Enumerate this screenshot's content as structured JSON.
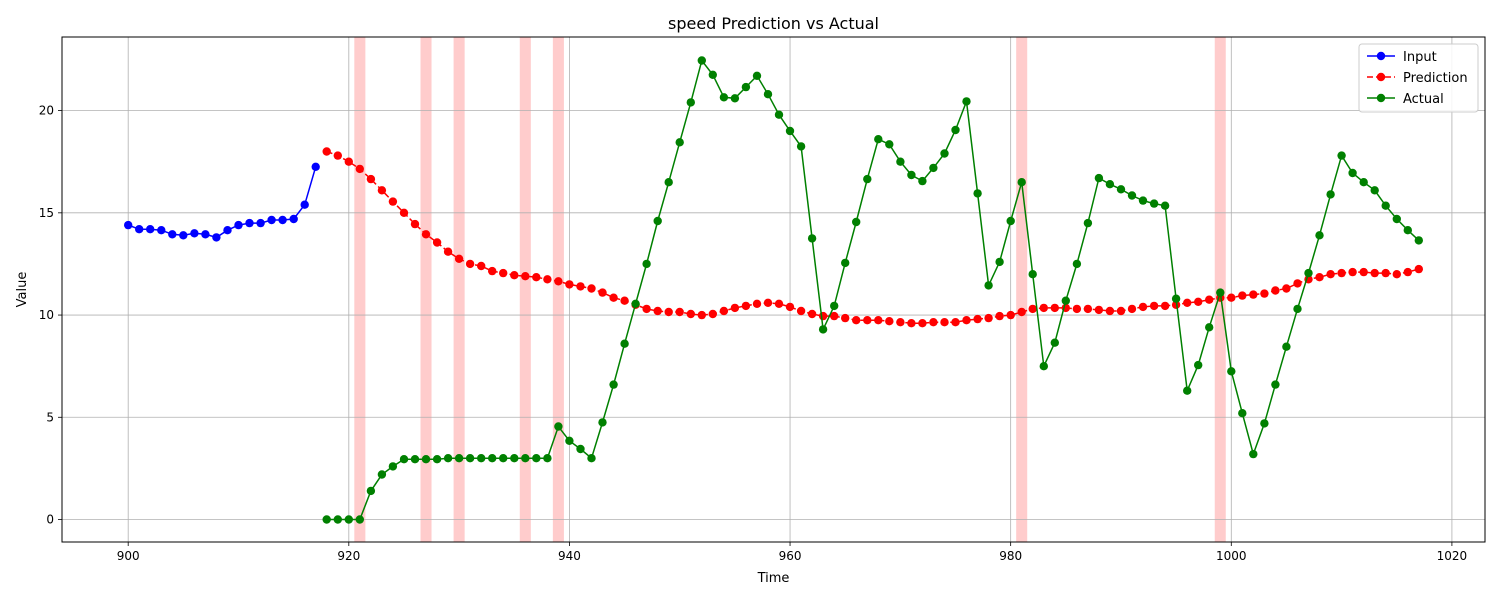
{
  "chart_data": {
    "type": "line",
    "title": "speed Prediction vs Actual",
    "xlabel": "Time",
    "ylabel": "Value",
    "xlim": [
      894,
      1023
    ],
    "ylim": [
      -1.1,
      23.6
    ],
    "xticks": [
      900,
      920,
      940,
      960,
      980,
      1000,
      1020
    ],
    "yticks": [
      0,
      5,
      10,
      15,
      20
    ],
    "grid": true,
    "legend_position": "top-right",
    "highlight_color": "#ff9999",
    "highlights": [
      [
        920.5,
        921.5
      ],
      [
        926.5,
        927.5
      ],
      [
        929.5,
        930.5
      ],
      [
        935.5,
        936.5
      ],
      [
        938.5,
        939.5
      ],
      [
        980.5,
        981.5
      ],
      [
        998.5,
        999.5
      ]
    ],
    "series": [
      {
        "name": "Input",
        "color": "#0000ff",
        "dashed": false,
        "x_start": 900,
        "values": [
          14.4,
          14.2,
          14.2,
          14.15,
          13.95,
          13.9,
          14.0,
          13.95,
          13.8,
          14.15,
          14.4,
          14.5,
          14.5,
          14.65,
          14.65,
          14.7,
          15.4,
          17.25
        ]
      },
      {
        "name": "Prediction",
        "color": "#ff0000",
        "dashed": true,
        "x_start": 918,
        "values": [
          18.0,
          17.8,
          17.5,
          17.15,
          16.65,
          16.1,
          15.55,
          15.0,
          14.45,
          13.95,
          13.55,
          13.1,
          12.75,
          12.5,
          12.4,
          12.15,
          12.05,
          11.95,
          11.9,
          11.85,
          11.75,
          11.65,
          11.5,
          11.4,
          11.3,
          11.1,
          10.85,
          10.7,
          10.5,
          10.3,
          10.2,
          10.15,
          10.15,
          10.05,
          10.0,
          10.05,
          10.2,
          10.35,
          10.45,
          10.55,
          10.6,
          10.55,
          10.4,
          10.2,
          10.05,
          9.95,
          9.95,
          9.85,
          9.75,
          9.75,
          9.75,
          9.7,
          9.65,
          9.6,
          9.6,
          9.65,
          9.65,
          9.65,
          9.75,
          9.8,
          9.85,
          9.95,
          10.0,
          10.15,
          10.3,
          10.35,
          10.35,
          10.35,
          10.3,
          10.3,
          10.25,
          10.2,
          10.2,
          10.3,
          10.4,
          10.45,
          10.45,
          10.5,
          10.6,
          10.65,
          10.75,
          10.85,
          10.85,
          10.95,
          11.0,
          11.05,
          11.2,
          11.3,
          11.55,
          11.75,
          11.85,
          12.0,
          12.05,
          12.1,
          12.1,
          12.05,
          12.05,
          12.0,
          12.1,
          12.25
        ]
      },
      {
        "name": "Actual",
        "color": "#008000",
        "dashed": false,
        "x_start": 918,
        "values": [
          0.0,
          0.0,
          0.0,
          0.0,
          1.4,
          2.2,
          2.6,
          2.95,
          2.95,
          2.95,
          2.95,
          3.0,
          3.0,
          3.0,
          3.0,
          3.0,
          3.0,
          3.0,
          3.0,
          3.0,
          3.0,
          4.55,
          3.85,
          3.45,
          3.0,
          4.75,
          6.6,
          8.6,
          10.55,
          12.5,
          14.6,
          16.5,
          18.45,
          20.4,
          22.45,
          21.75,
          20.65,
          20.6,
          21.15,
          21.7,
          20.8,
          19.8,
          19.0,
          18.25,
          13.75,
          9.3,
          10.45,
          12.55,
          14.55,
          16.65,
          18.6,
          18.35,
          17.5,
          16.85,
          16.55,
          17.2,
          17.9,
          19.05,
          20.45,
          15.95,
          11.45,
          12.6,
          14.6,
          16.5,
          12.0,
          7.5,
          8.65,
          10.7,
          12.5,
          14.5,
          16.7,
          16.4,
          16.15,
          15.85,
          15.6,
          15.45,
          15.35,
          10.8,
          6.3,
          7.55,
          9.4,
          11.1,
          7.25,
          5.2,
          3.2,
          4.7,
          6.6,
          8.45,
          10.3,
          12.05,
          13.9,
          15.9,
          17.8,
          16.95,
          16.5,
          16.1,
          15.35,
          14.7,
          14.15,
          13.65
        ]
      }
    ]
  }
}
